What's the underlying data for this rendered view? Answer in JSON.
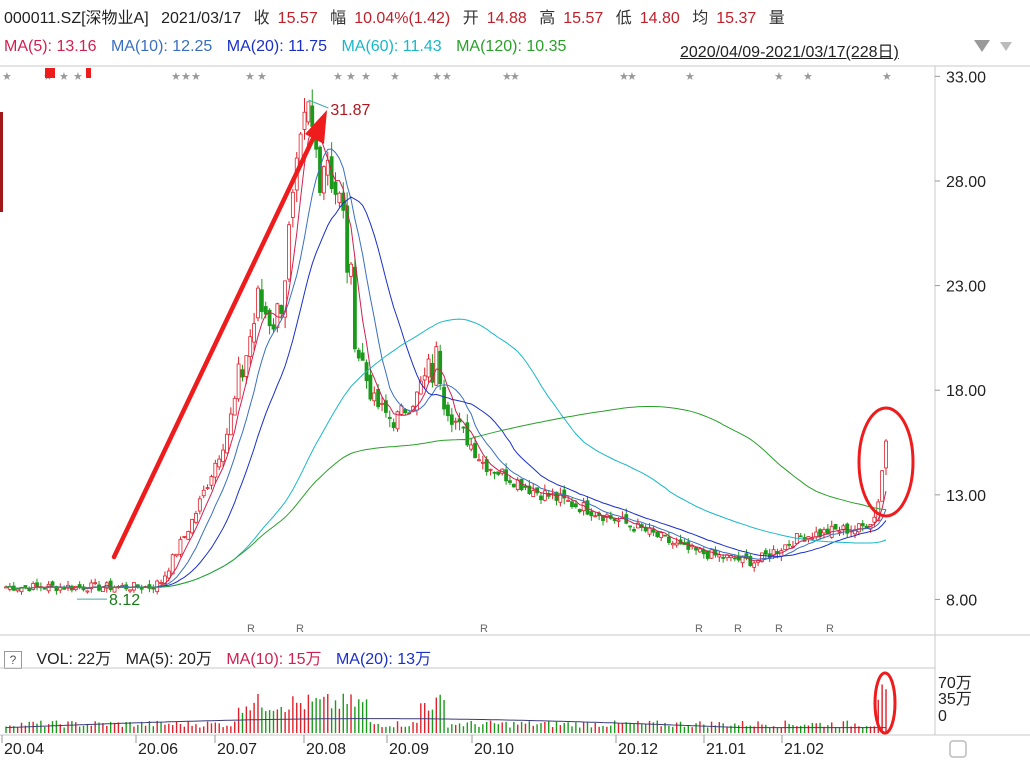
{
  "header": {
    "code": "000011.SZ[深物业A]",
    "date": "2021/03/17",
    "close_label": "收",
    "close_value": "15.57",
    "change_label": "幅",
    "change_value": "10.04%(1.42)",
    "open_label": "开",
    "open_value": "14.88",
    "high_label": "高",
    "high_value": "15.57",
    "low_label": "低",
    "low_value": "14.80",
    "avg_label": "均",
    "avg_value": "15.37",
    "vol_label": "量"
  },
  "ma_legend": {
    "ma5": "MA(5): 13.16",
    "ma10": "MA(10): 12.25",
    "ma20": "MA(20): 11.75",
    "ma60": "MA(60): 11.43",
    "ma120": "MA(120): 10.35",
    "range": "2020/04/09-2021/03/17(228日)"
  },
  "volume_legend": {
    "help": "?",
    "vol": "VOL: 22万",
    "ma5": "MA(5): 20万",
    "ma10": "MA(10): 15万",
    "ma20": "MA(20): 13万"
  },
  "colors": {
    "up": "#e0202a",
    "down": "#1a9a1a",
    "ma5": "#d02050",
    "ma10": "#3a6fc0",
    "ma20": "#1a2fc8",
    "ma60": "#18b8c8",
    "ma120": "#2aa02a",
    "annotation": "#ee1c1c"
  },
  "chart_data": {
    "type": "candlestick",
    "price_axis": {
      "ticks": [
        "33.00",
        "28.00",
        "23.00",
        "18.00",
        "13.00",
        "8.00"
      ],
      "ylim": [
        6.3,
        33.4
      ]
    },
    "volume_axis": {
      "ticks": [
        "70万",
        "35万",
        "0"
      ],
      "ylim": [
        0,
        70
      ]
    },
    "x_ticks": [
      "20.04",
      "20.06",
      "20.07",
      "20.08",
      "20.09",
      "20.10",
      "20.12",
      "21.01",
      "21.02"
    ],
    "annotations": {
      "high": "31.87",
      "low": "8.12"
    },
    "ma_legend_series": [
      "MA(5)",
      "MA(10)",
      "MA(20)",
      "MA(60)",
      "MA(120)"
    ],
    "key_points": [
      {
        "date": "2020/04",
        "price": 8.6
      },
      {
        "date": "2020/06",
        "price": 8.6
      },
      {
        "date": "2020/07",
        "price": 22
      },
      {
        "date": "2020/08",
        "price": 31.87
      },
      {
        "date": "2020/09",
        "price": 16.5
      },
      {
        "date": "2020/10",
        "price": 19.8
      },
      {
        "date": "2020/12",
        "price": 13.2
      },
      {
        "date": "2021/02",
        "price": 9.9
      },
      {
        "date": "2021/03/17",
        "price": 15.57
      }
    ]
  }
}
